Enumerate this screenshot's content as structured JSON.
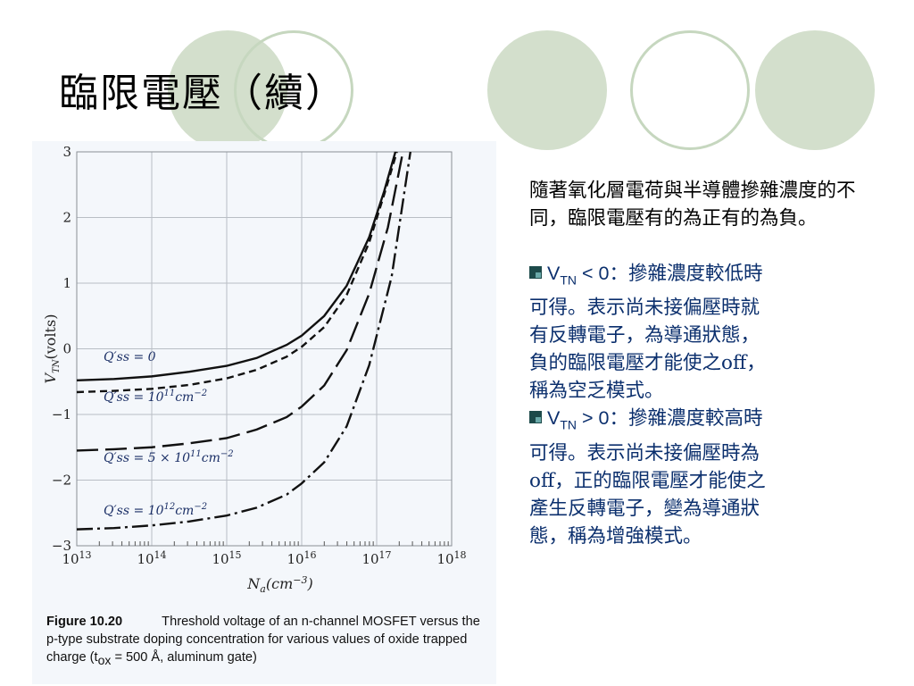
{
  "slide_title": "臨限電壓（續）",
  "decor": {
    "circle_fill": "#d3dfcc",
    "circle_stroke": "#c6d7bf"
  },
  "intro_text": "隨著氧化層電荷與半導體摻雜濃度的不同，臨限電壓有的為正有的為負。",
  "bullets": [
    {
      "var": "V",
      "sub": "TN",
      "op": " < 0",
      "lines": [
        "：摻雜濃度較低時",
        "可得。表示尚未接偏壓時就",
        "有反轉電子，為導通狀態，",
        "負的臨限電壓才能使之off，",
        "稱為空乏模式。"
      ]
    },
    {
      "var": "V",
      "sub": "TN",
      "op": " > 0",
      "lines": [
        "：摻雜濃度較高時",
        "可得。表示尚未接偏壓時為",
        "off，正的臨限電壓才能使之",
        "產生反轉電子，變為導通狀",
        "態，稱為增強模式。"
      ]
    }
  ],
  "caption": {
    "label": "Figure 10.20",
    "text": "Threshold voltage of an n-channel MOSFET versus the p-type substrate doping concentration for various values of oxide trapped charge (t",
    "sub": "ox",
    "tail": " = 500 Å, aluminum gate)"
  },
  "chart_data": {
    "type": "line",
    "xlabel_base": "N",
    "xlabel_sub": "a",
    "xlabel_unit": "(cm",
    "xlabel_exp": "−3",
    "ylabel": "V",
    "ylabel_sub": "TN",
    "ylabel_unit": "(volts)",
    "x_scale": "log",
    "x_range_exp": [
      13,
      18
    ],
    "ylim": [
      -3,
      3
    ],
    "grid": true,
    "x_ticks": [
      {
        "base": "10",
        "exp": "13",
        "v": 13
      },
      {
        "base": "10",
        "exp": "14",
        "v": 14
      },
      {
        "base": "10",
        "exp": "15",
        "v": 15
      },
      {
        "base": "10",
        "exp": "16",
        "v": 16
      },
      {
        "base": "10",
        "exp": "17",
        "v": 17
      },
      {
        "base": "10",
        "exp": "18",
        "v": 18
      }
    ],
    "y_ticks": [
      "3",
      "2",
      "1",
      "0",
      "−1",
      "−2",
      "−3"
    ],
    "series": [
      {
        "label_main": "Q′ss = 0",
        "label_exp": "",
        "dash": "none",
        "points": [
          [
            13.0,
            -0.48
          ],
          [
            13.5,
            -0.46
          ],
          [
            14.0,
            -0.42
          ],
          [
            14.5,
            -0.35
          ],
          [
            15.0,
            -0.26
          ],
          [
            15.4,
            -0.14
          ],
          [
            15.8,
            0.06
          ],
          [
            16.0,
            0.2
          ],
          [
            16.3,
            0.5
          ],
          [
            16.6,
            0.96
          ],
          [
            16.9,
            1.7
          ],
          [
            17.1,
            2.4
          ],
          [
            17.25,
            3.0
          ]
        ]
      },
      {
        "label_main": "Q′ss = 10",
        "label_exp": "11",
        "label_tail": "cm",
        "dash": "8,5",
        "points": [
          [
            13.0,
            -0.66
          ],
          [
            13.5,
            -0.64
          ],
          [
            14.0,
            -0.61
          ],
          [
            14.5,
            -0.55
          ],
          [
            15.0,
            -0.45
          ],
          [
            15.4,
            -0.32
          ],
          [
            15.8,
            -0.12
          ],
          [
            16.0,
            0.03
          ],
          [
            16.3,
            0.33
          ],
          [
            16.6,
            0.82
          ],
          [
            16.9,
            1.62
          ],
          [
            17.1,
            2.35
          ],
          [
            17.27,
            3.0
          ]
        ]
      },
      {
        "label_main": "Q′ss = 5 × 10",
        "label_exp": "11",
        "label_tail": "cm",
        "dash": "24,8",
        "points": [
          [
            13.0,
            -1.55
          ],
          [
            13.5,
            -1.53
          ],
          [
            14.0,
            -1.5
          ],
          [
            14.5,
            -1.44
          ],
          [
            15.0,
            -1.36
          ],
          [
            15.4,
            -1.23
          ],
          [
            15.8,
            -1.04
          ],
          [
            16.0,
            -0.88
          ],
          [
            16.3,
            -0.56
          ],
          [
            16.6,
            -0.02
          ],
          [
            16.9,
            0.84
          ],
          [
            17.15,
            1.85
          ],
          [
            17.35,
            3.0
          ]
        ]
      },
      {
        "label_main": "Q′ss = 10",
        "label_exp": "12",
        "label_tail": "cm",
        "dash": "18,5,3,5",
        "points": [
          [
            13.0,
            -2.75
          ],
          [
            13.5,
            -2.73
          ],
          [
            14.0,
            -2.69
          ],
          [
            14.5,
            -2.63
          ],
          [
            15.0,
            -2.54
          ],
          [
            15.4,
            -2.42
          ],
          [
            15.8,
            -2.22
          ],
          [
            16.0,
            -2.05
          ],
          [
            16.3,
            -1.73
          ],
          [
            16.6,
            -1.18
          ],
          [
            16.9,
            -0.25
          ],
          [
            17.2,
            1.1
          ],
          [
            17.45,
            3.0
          ]
        ]
      }
    ]
  }
}
